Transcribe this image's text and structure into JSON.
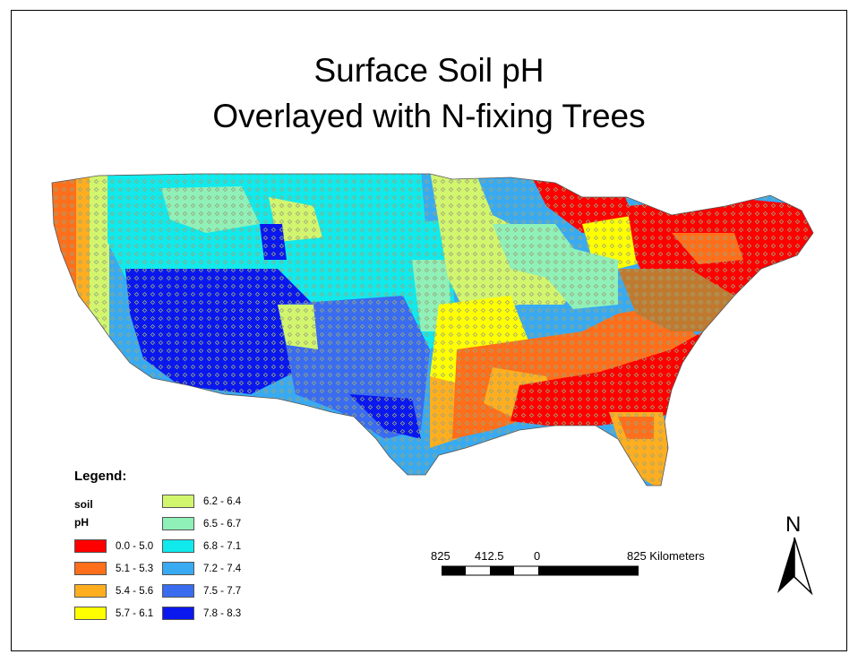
{
  "title": {
    "line1": "Surface Soil pH",
    "line2": "Overlayed with N-fixing Trees"
  },
  "legend": {
    "title": "Legend:",
    "field_line1": "soil",
    "field_line2": "pH",
    "classes": [
      {
        "label": "0.0 - 5.0",
        "color": "#ff0000"
      },
      {
        "label": "5.1 - 5.3",
        "color": "#ff6e1a"
      },
      {
        "label": "5.4 - 5.6",
        "color": "#ffae20"
      },
      {
        "label": "5.7 - 6.1",
        "color": "#ffff00"
      },
      {
        "label": "6.2 - 6.4",
        "color": "#d2f56e"
      },
      {
        "label": "6.5 - 6.7",
        "color": "#8ff0b8"
      },
      {
        "label": "6.8 - 7.1",
        "color": "#10eaec"
      },
      {
        "label": "7.2 - 7.4",
        "color": "#38aaf2"
      },
      {
        "label": "7.5 - 7.7",
        "color": "#3a6cf0"
      },
      {
        "label": "7.8 - 8.3",
        "color": "#0a18ee"
      }
    ]
  },
  "scale_bar": {
    "labels": [
      "825",
      "412.5",
      "0",
      "825 Kilometers"
    ]
  },
  "north_arrow": {
    "label": "N",
    "icon": "north-arrow-icon"
  },
  "overlay": {
    "marker_color": "#9aa57a"
  }
}
